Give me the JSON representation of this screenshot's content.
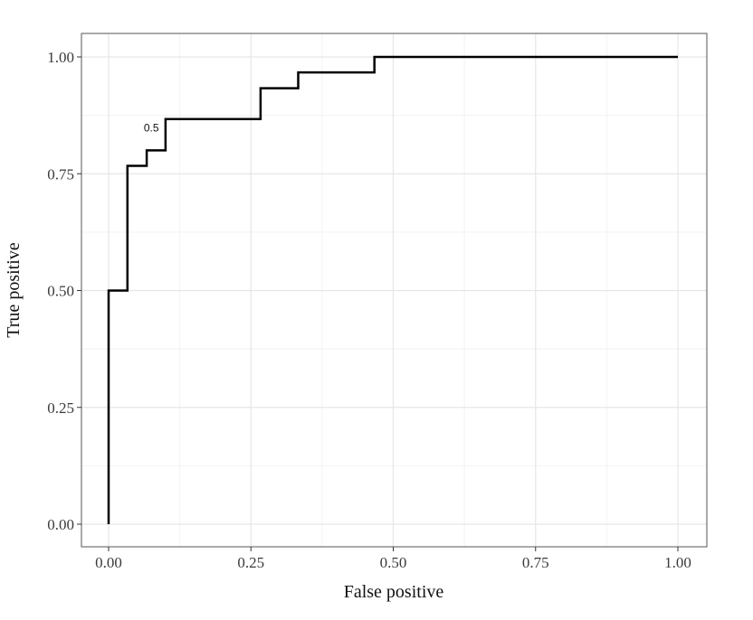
{
  "chart_data": {
    "type": "line",
    "title": "",
    "xlabel": "False positive",
    "ylabel": "True positive",
    "xlim": [
      0,
      1
    ],
    "ylim": [
      0,
      1
    ],
    "grid": true,
    "x_ticks": [
      "0.00",
      "0.25",
      "0.50",
      "0.75",
      "1.00"
    ],
    "y_ticks": [
      "0.00",
      "0.25",
      "0.50",
      "0.75",
      "1.00"
    ],
    "series": [
      {
        "color": "#000000",
        "x": [
          0.0,
          0.0,
          0.033,
          0.033,
          0.067,
          0.067,
          0.1,
          0.1,
          0.267,
          0.267,
          0.333,
          0.333,
          0.467,
          0.467,
          1.0
        ],
        "y": [
          0.0,
          0.5,
          0.5,
          0.767,
          0.767,
          0.8,
          0.8,
          0.867,
          0.867,
          0.933,
          0.933,
          0.967,
          0.967,
          1.0,
          1.0
        ]
      }
    ],
    "annotations": [
      {
        "text": "0.5",
        "x": 0.075,
        "y": 0.84
      }
    ]
  }
}
